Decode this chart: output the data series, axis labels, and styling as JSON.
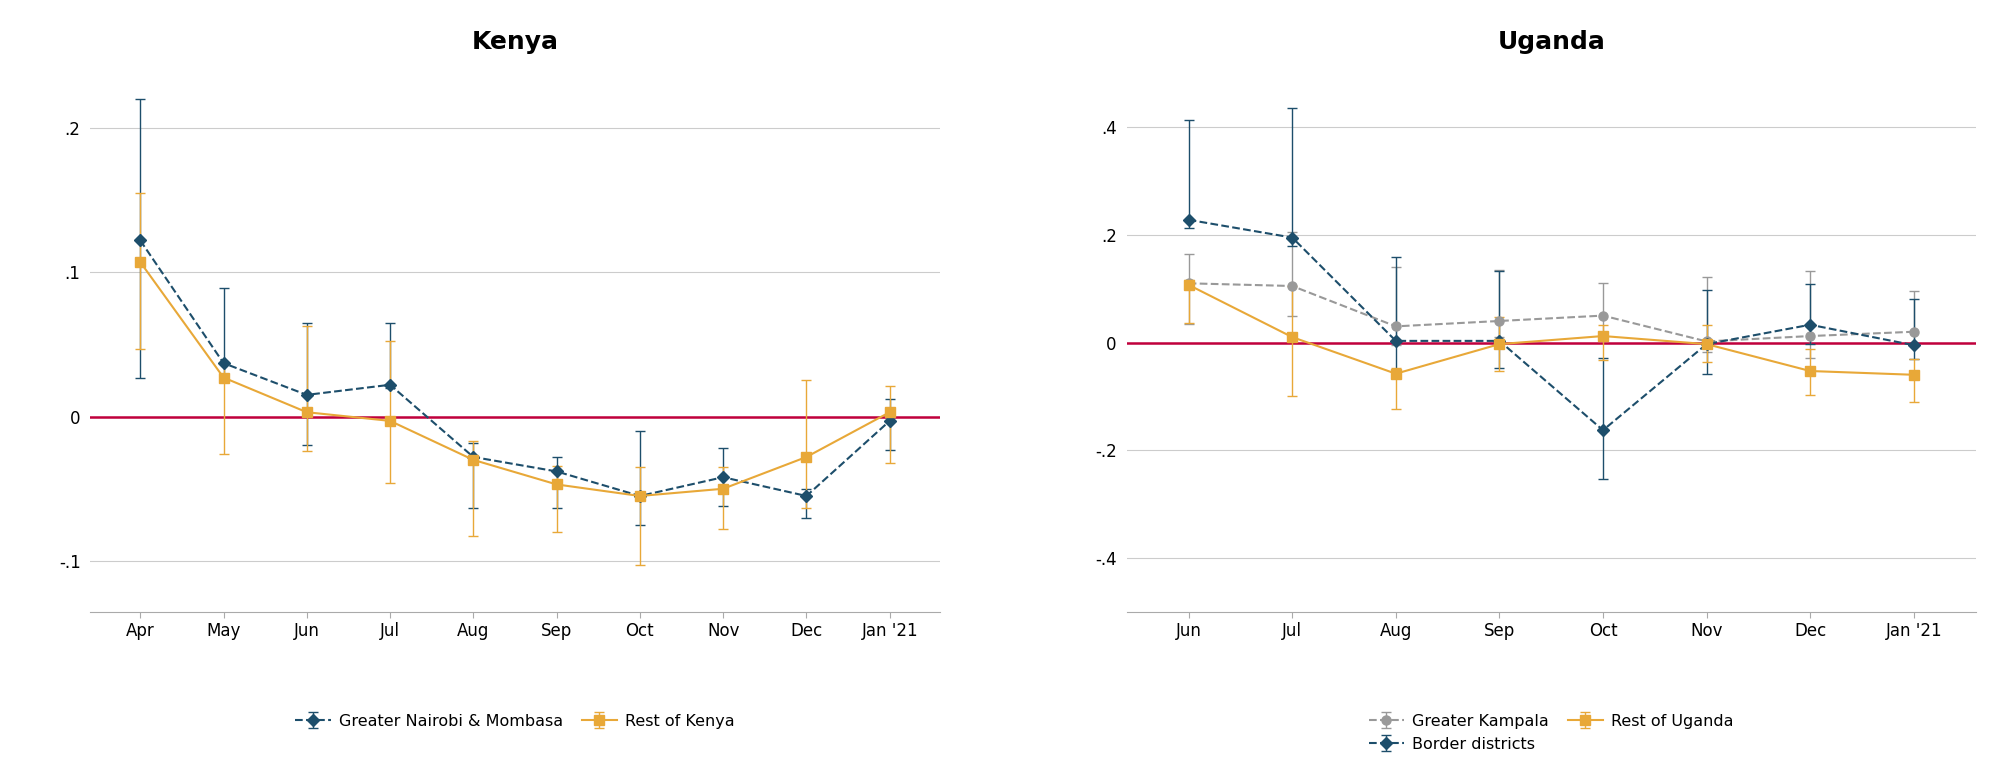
{
  "kenya": {
    "title": "Kenya",
    "x_labels": [
      "Apr",
      "May",
      "Jun",
      "Jul",
      "Aug",
      "Sep",
      "Oct",
      "Nov",
      "Dec",
      "Jan '21"
    ],
    "nairobi": {
      "y": [
        0.122,
        0.037,
        0.015,
        0.022,
        -0.028,
        -0.038,
        -0.055,
        -0.042,
        -0.055,
        -0.003
      ],
      "yerr_low": [
        0.095,
        0.008,
        0.035,
        0.002,
        0.035,
        0.025,
        0.02,
        0.02,
        0.015,
        0.02
      ],
      "yerr_high": [
        0.098,
        0.052,
        0.05,
        0.043,
        0.01,
        0.01,
        0.045,
        0.02,
        0.005,
        0.015
      ],
      "color": "#1d4e6b",
      "label": "Greater Nairobi & Mombasa"
    },
    "rest": {
      "y": [
        0.107,
        0.027,
        0.003,
        -0.003,
        -0.03,
        -0.047,
        -0.055,
        -0.05,
        -0.028,
        0.003
      ],
      "yerr_low": [
        0.06,
        0.053,
        0.027,
        0.043,
        0.053,
        0.033,
        0.048,
        0.028,
        0.035,
        0.035
      ],
      "yerr_high": [
        0.048,
        0.01,
        0.06,
        0.055,
        0.013,
        0.013,
        0.02,
        0.015,
        0.053,
        0.018
      ],
      "color": "#e8a838",
      "label": "Rest of Kenya"
    },
    "ylim": [
      -0.135,
      0.245
    ],
    "yticks": [
      -0.1,
      0.0,
      0.1,
      0.2
    ],
    "ytick_labels": [
      "-.1",
      "0",
      ".1",
      ".2"
    ]
  },
  "uganda": {
    "title": "Uganda",
    "x_labels": [
      "Jun",
      "Jul",
      "Aug",
      "Sep",
      "Oct",
      "Nov",
      "Dec",
      "Jan '21"
    ],
    "kampala": {
      "y": [
        0.11,
        0.105,
        0.03,
        0.04,
        0.05,
        0.002,
        0.012,
        0.02
      ],
      "yerr_low": [
        0.075,
        0.055,
        0.035,
        0.03,
        0.04,
        0.02,
        0.04,
        0.025
      ],
      "yerr_high": [
        0.055,
        0.1,
        0.11,
        0.095,
        0.06,
        0.12,
        0.12,
        0.075
      ],
      "color": "#999999",
      "label": "Greater Kampala"
    },
    "border": {
      "y": [
        0.228,
        0.195,
        0.003,
        0.003,
        -0.163,
        -0.003,
        0.033,
        -0.005
      ],
      "yerr_low": [
        0.015,
        0.015,
        0.06,
        0.05,
        0.09,
        0.055,
        0.035,
        0.025
      ],
      "yerr_high": [
        0.185,
        0.24,
        0.155,
        0.13,
        0.135,
        0.1,
        0.075,
        0.085
      ],
      "color": "#1d4e6b",
      "label": "Border districts"
    },
    "rest": {
      "y": [
        0.107,
        0.01,
        -0.058,
        -0.003,
        0.012,
        -0.003,
        -0.053,
        -0.06
      ],
      "yerr_low": [
        0.07,
        0.11,
        0.065,
        0.05,
        0.045,
        0.033,
        0.045,
        0.05
      ],
      "yerr_high": [
        0.01,
        0.095,
        0.01,
        0.05,
        0.02,
        0.035,
        0.04,
        0.03
      ],
      "color": "#e8a838",
      "label": "Rest of Uganda"
    },
    "ylim": [
      -0.5,
      0.52
    ],
    "yticks": [
      -0.4,
      -0.2,
      0.0,
      0.2,
      0.4
    ],
    "ytick_labels": [
      "-.4",
      "-.2",
      "0",
      ".2",
      ".4"
    ]
  },
  "hline_color": "#c0003c",
  "grid_color": "#cccccc",
  "bg_color": "#ffffff",
  "title_fontsize": 18,
  "tick_fontsize": 12,
  "legend_fontsize": 11.5
}
